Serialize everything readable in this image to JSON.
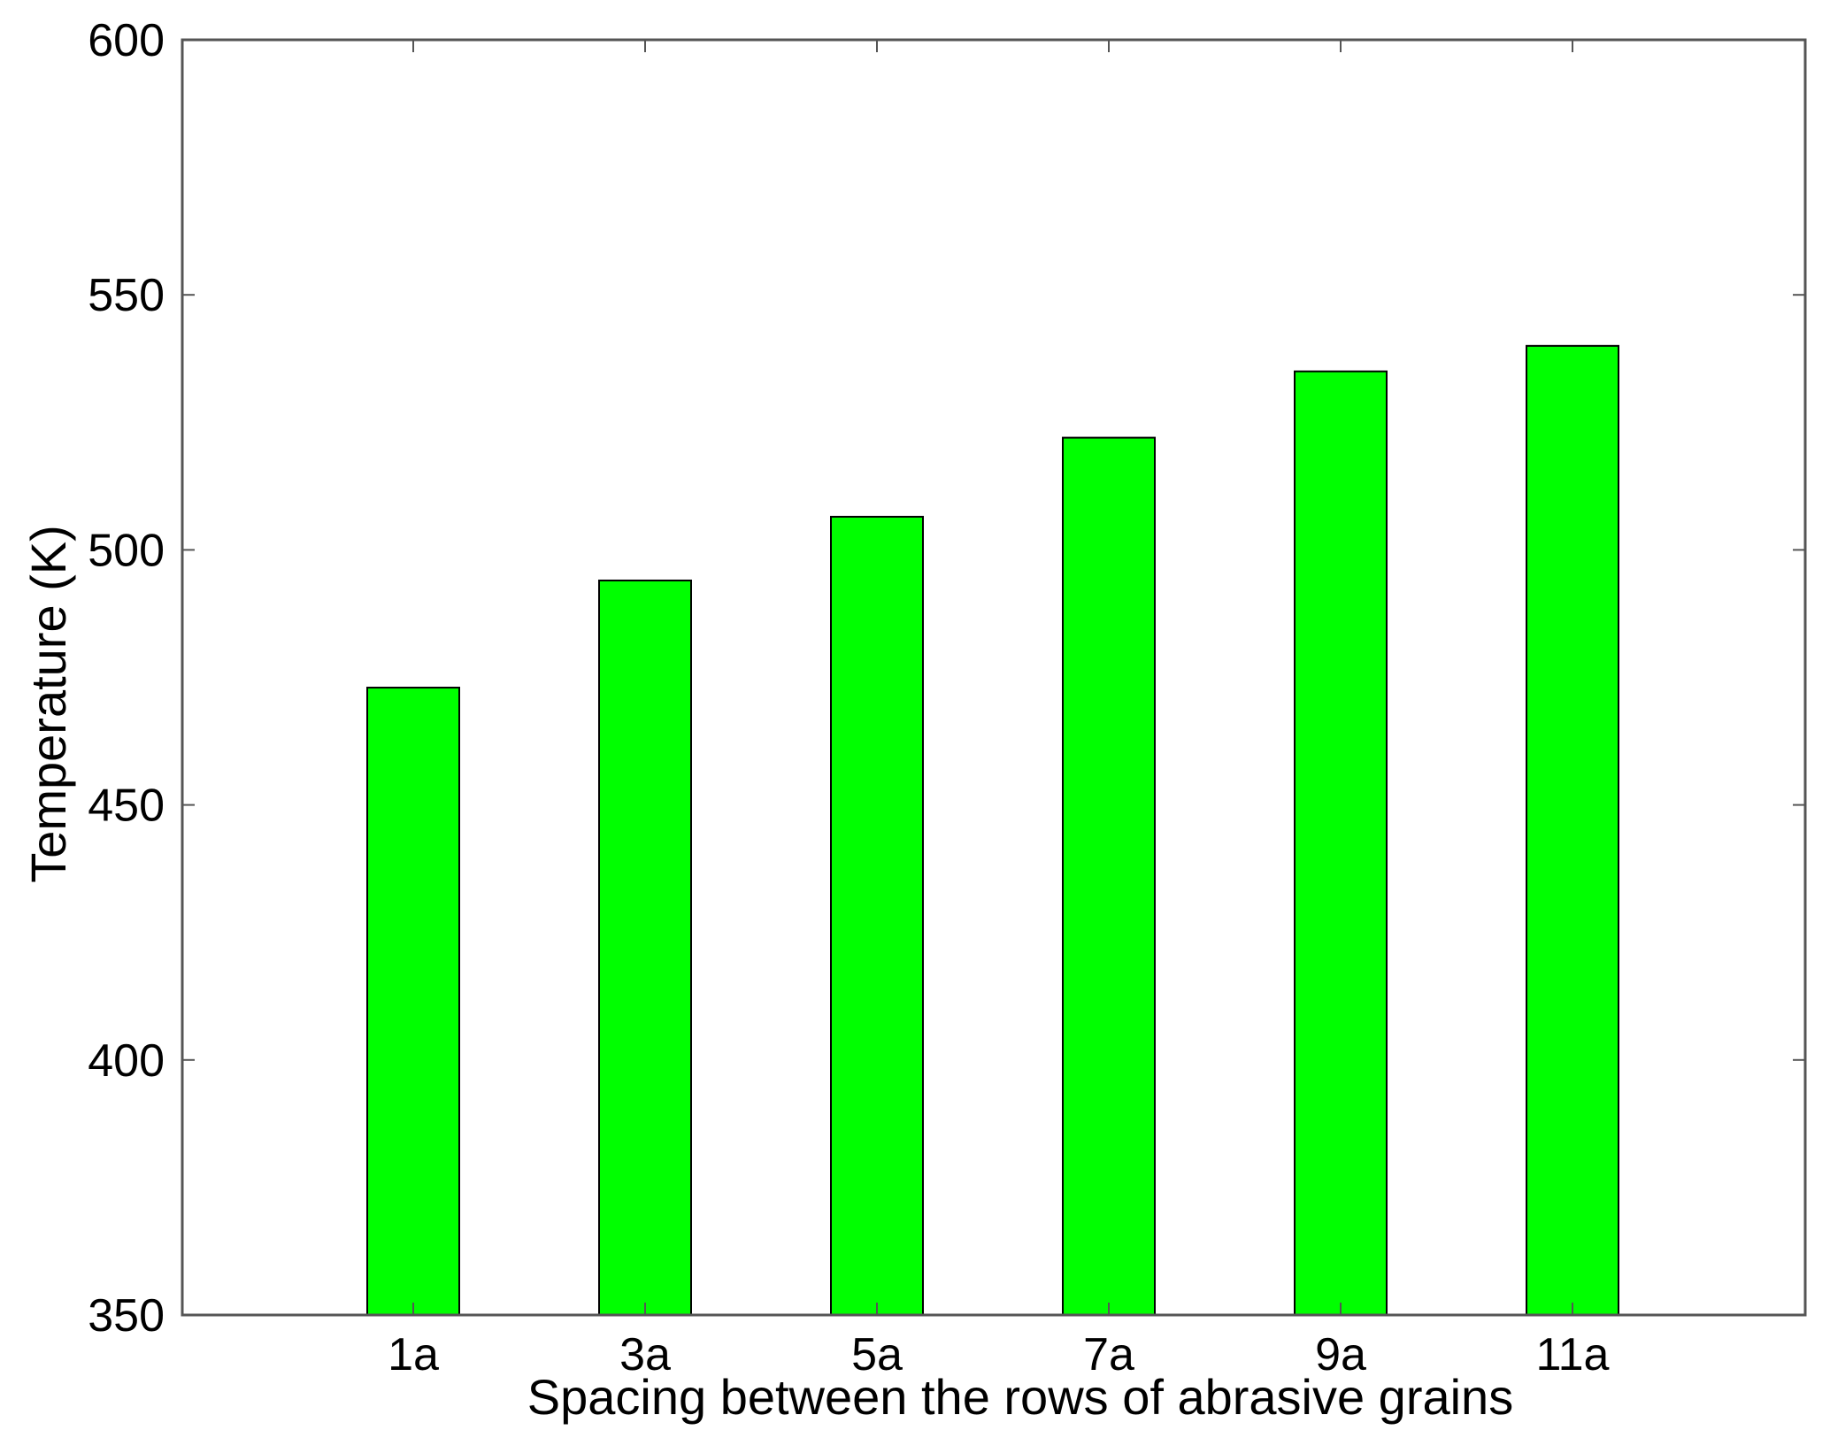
{
  "chart_data": {
    "type": "bar",
    "categories": [
      "1a",
      "3a",
      "5a",
      "7a",
      "9a",
      "11a"
    ],
    "values": [
      473,
      494,
      506.5,
      522,
      535,
      540
    ],
    "xlabel": "Spacing between the rows of abrasive grains",
    "ylabel": "Temperature (K)",
    "ylim": [
      350,
      600
    ],
    "yticks": [
      350,
      400,
      450,
      500,
      550,
      600
    ],
    "bar_color": "#00ff00",
    "bar_edge_color": "#000000",
    "grid": false,
    "legend": "none"
  }
}
